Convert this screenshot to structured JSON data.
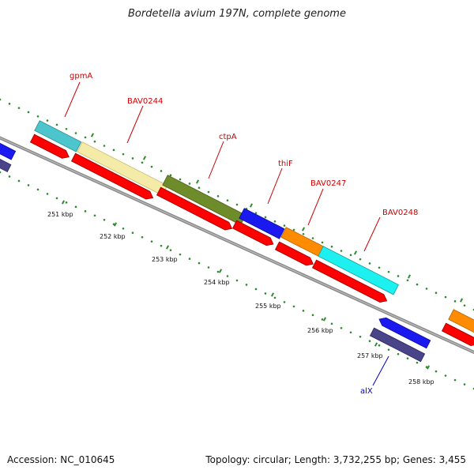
{
  "header": {
    "title": "Bordetella avium 197N, complete genome"
  },
  "footer": {
    "accession": "Accession: NC_010645",
    "summary": "Topology: circular; Length: 3,732,255 bp; Genes: 3,455"
  },
  "colors": {
    "backbone": "#8a8a8a",
    "tick_dots": "#2e8b2e",
    "forward_red": "#ff0000",
    "label_red": "#cc0000",
    "label_blue": "#0000cc"
  },
  "scale_labels": [
    "251 kbp",
    "252 kbp",
    "253 kbp",
    "254 kbp",
    "255 kbp",
    "256 kbp",
    "257 kbp",
    "258 kbp"
  ],
  "gene_labels": [
    {
      "text": "gpmA",
      "color": "#cc0000"
    },
    {
      "text": "BAV0244",
      "color": "#cc0000"
    },
    {
      "text": "ctpA",
      "color": "#cc0000"
    },
    {
      "text": "thiF",
      "color": "#cc0000"
    },
    {
      "text": "BAV0247",
      "color": "#cc0000"
    },
    {
      "text": "BAV0248",
      "color": "#cc0000"
    },
    {
      "text": "alX",
      "color": "#0000cc"
    }
  ]
}
